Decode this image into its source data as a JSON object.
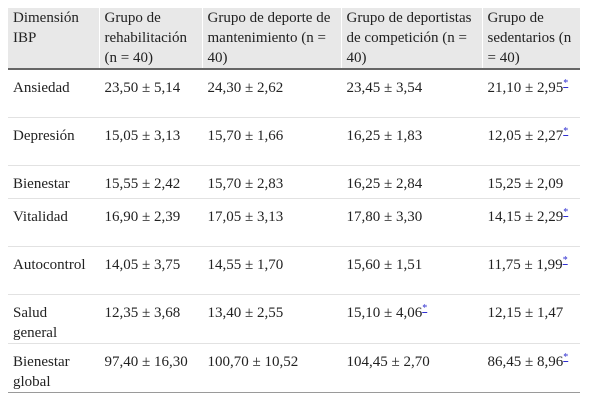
{
  "table": {
    "headers": [
      "Dimensión IBP",
      "Grupo de rehabilitación (n = 40)",
      "Grupo de deporte de mantenimiento (n = 40)",
      "Grupo de deportistas de competición (n = 40)",
      "Grupo de sedentarios (n = 40)"
    ],
    "significance_marker": "*",
    "rows": [
      {
        "label": "Ansiedad",
        "values": [
          "23,50 ± 5,14",
          "24,30 ± 2,62",
          "23,45 ± 3,54",
          "21,10 ± 2,95"
        ],
        "sig": [
          false,
          false,
          false,
          true
        ]
      },
      {
        "label": "Depresión",
        "values": [
          "15,05 ± 3,13",
          "15,70 ± 1,66",
          "16,25 ± 1,83",
          "12,05 ± 2,27"
        ],
        "sig": [
          false,
          false,
          false,
          true
        ]
      },
      {
        "label": "Bienestar",
        "values": [
          "15,55 ± 2,42",
          "15,70 ± 2,83",
          "16,25 ± 2,84",
          "15,25 ± 2,09"
        ],
        "sig": [
          false,
          false,
          false,
          false
        ]
      },
      {
        "label": "Vitalidad",
        "values": [
          "16,90 ± 2,39",
          "17,05 ± 3,13",
          "17,80 ± 3,30",
          "14,15 ± 2,29"
        ],
        "sig": [
          false,
          false,
          false,
          true
        ]
      },
      {
        "label": "Autocontrol",
        "values": [
          "14,05 ± 3,75",
          "14,55 ± 1,70",
          "15,60 ± 1,51",
          "11,75 ± 1,99"
        ],
        "sig": [
          false,
          false,
          false,
          true
        ]
      },
      {
        "label": "Salud general",
        "values": [
          "12,35 ± 3,68",
          "13,40 ± 2,55",
          "15,10 ± 4,06",
          "12,15 ± 1,47"
        ],
        "sig": [
          false,
          false,
          true,
          false
        ]
      },
      {
        "label": "Bienestar global",
        "values": [
          "97,40 ± 16,30",
          "100,70 ± 10,52",
          "104,45 ± 2,70",
          "86,45 ± 8,96"
        ],
        "sig": [
          false,
          false,
          false,
          true
        ]
      }
    ]
  }
}
